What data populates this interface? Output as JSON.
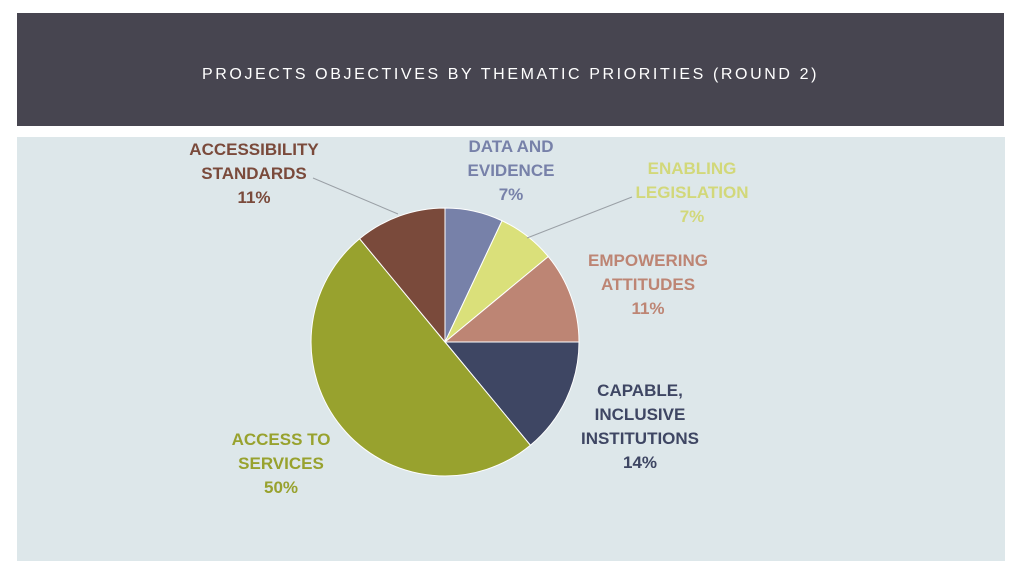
{
  "header": {
    "title": "PROJECTS OBJECTIVES BY THEMATIC PRIORITIES (ROUND 2)"
  },
  "chart_data": {
    "type": "pie",
    "slices": [
      {
        "key": "data",
        "label_lines": [
          "DATA AND",
          "EVIDENCE"
        ],
        "value": 7,
        "value_label": "7%",
        "color": "#7781a9"
      },
      {
        "key": "legislation",
        "label_lines": [
          "ENABLING",
          "LEGISLATION"
        ],
        "value": 7,
        "value_label": "7%",
        "color": "#dae07a"
      },
      {
        "key": "attitudes",
        "label_lines": [
          "EMPOWERING",
          "ATTITUDES"
        ],
        "value": 11,
        "value_label": "11%",
        "color": "#bd8574"
      },
      {
        "key": "institutions",
        "label_lines": [
          "CAPABLE,",
          "INCLUSIVE",
          "INSTITUTIONS"
        ],
        "value": 14,
        "value_label": "14%",
        "color": "#3e4663"
      },
      {
        "key": "services",
        "label_lines": [
          "ACCESS TO",
          "SERVICES"
        ],
        "value": 50,
        "value_label": "50%",
        "color": "#98a22e"
      },
      {
        "key": "accessibility",
        "label_lines": [
          "ACCESSIBILITY",
          "STANDARDS"
        ],
        "value": 11,
        "value_label": "11%",
        "color": "#7a4a3b"
      }
    ],
    "label_colors": {
      "data": "#7781a9",
      "legislation": "#d2d87a",
      "attitudes": "#bd8574",
      "institutions": "#3e4663",
      "services": "#98a22e",
      "accessibility": "#7a4a3b"
    }
  }
}
